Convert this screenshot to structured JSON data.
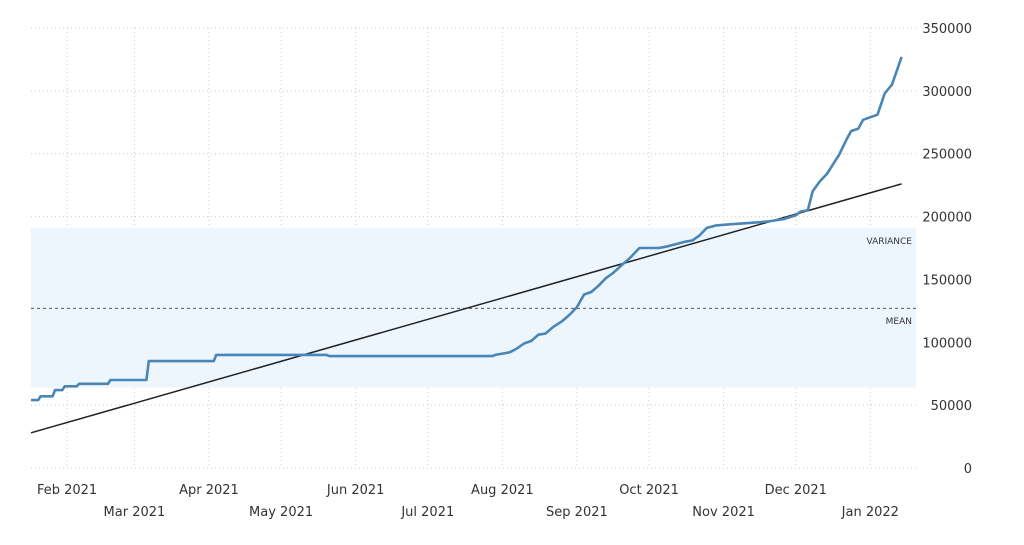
{
  "chart_data": {
    "type": "line",
    "y_axis": {
      "side": "right",
      "ylim": [
        0,
        350000
      ],
      "ticks": [
        0,
        50000,
        100000,
        150000,
        200000,
        250000,
        300000,
        350000
      ],
      "tick_labels": [
        "0",
        "50000",
        "100000",
        "150000",
        "200000",
        "250000",
        "300000",
        "350000"
      ]
    },
    "x_axis": {
      "xlim": [
        "2021-01-17",
        "2022-01-20"
      ],
      "ticks": [
        "2021-02-01",
        "2021-03-01",
        "2021-04-01",
        "2021-05-01",
        "2021-06-01",
        "2021-07-01",
        "2021-08-01",
        "2021-09-01",
        "2021-10-01",
        "2021-11-01",
        "2021-12-01",
        "2022-01-01"
      ],
      "tick_labels": [
        "Feb 2021",
        "Mar 2021",
        "Apr 2021",
        "May 2021",
        "Jun 2021",
        "Jul 2021",
        "Aug 2021",
        "Sep 2021",
        "Oct 2021",
        "Nov 2021",
        "Dec 2021",
        "Jan 2022"
      ],
      "label_rows": [
        0,
        1,
        0,
        1,
        0,
        1,
        0,
        1,
        0,
        1,
        0,
        1
      ]
    },
    "grid": "dotted",
    "series": [
      {
        "color": "#4a86b5",
        "points": [
          [
            "2021-01-17",
            54000
          ],
          [
            "2021-01-20",
            54000
          ],
          [
            "2021-01-21",
            57000
          ],
          [
            "2021-01-26",
            57000
          ],
          [
            "2021-01-27",
            62000
          ],
          [
            "2021-01-30",
            62000
          ],
          [
            "2021-01-31",
            65000
          ],
          [
            "2021-02-05",
            65000
          ],
          [
            "2021-02-06",
            67000
          ],
          [
            "2021-02-18",
            67000
          ],
          [
            "2021-02-19",
            70000
          ],
          [
            "2021-03-06",
            70000
          ],
          [
            "2021-03-07",
            85000
          ],
          [
            "2021-04-03",
            85000
          ],
          [
            "2021-04-04",
            90000
          ],
          [
            "2021-05-20",
            90000
          ],
          [
            "2021-05-21",
            89000
          ],
          [
            "2021-07-28",
            89000
          ],
          [
            "2021-07-29",
            90000
          ],
          [
            "2021-08-01",
            91000
          ],
          [
            "2021-08-04",
            92000
          ],
          [
            "2021-08-07",
            95000
          ],
          [
            "2021-08-10",
            99000
          ],
          [
            "2021-08-13",
            101000
          ],
          [
            "2021-08-16",
            106000
          ],
          [
            "2021-08-19",
            107000
          ],
          [
            "2021-08-22",
            112000
          ],
          [
            "2021-08-26",
            117000
          ],
          [
            "2021-08-29",
            122000
          ],
          [
            "2021-09-01",
            128000
          ],
          [
            "2021-09-04",
            138000
          ],
          [
            "2021-09-07",
            140000
          ],
          [
            "2021-09-10",
            145000
          ],
          [
            "2021-09-13",
            151000
          ],
          [
            "2021-09-16",
            155000
          ],
          [
            "2021-09-20",
            162000
          ],
          [
            "2021-09-23",
            167000
          ],
          [
            "2021-09-27",
            175000
          ],
          [
            "2021-10-05",
            175000
          ],
          [
            "2021-10-08",
            176000
          ],
          [
            "2021-10-12",
            178000
          ],
          [
            "2021-10-16",
            180000
          ],
          [
            "2021-10-19",
            181000
          ],
          [
            "2021-10-22",
            185000
          ],
          [
            "2021-10-25",
            191000
          ],
          [
            "2021-10-29",
            193000
          ],
          [
            "2021-11-05",
            194000
          ],
          [
            "2021-11-12",
            195000
          ],
          [
            "2021-11-19",
            196000
          ],
          [
            "2021-11-26",
            198000
          ],
          [
            "2021-12-01",
            201000
          ],
          [
            "2021-12-03",
            204000
          ],
          [
            "2021-12-06",
            205000
          ],
          [
            "2021-12-08",
            220000
          ],
          [
            "2021-12-11",
            228000
          ],
          [
            "2021-12-14",
            234000
          ],
          [
            "2021-12-17",
            243000
          ],
          [
            "2021-12-19",
            249000
          ],
          [
            "2021-12-22",
            261000
          ],
          [
            "2021-12-24",
            268000
          ],
          [
            "2021-12-27",
            270000
          ],
          [
            "2021-12-29",
            277000
          ],
          [
            "2022-01-04",
            281000
          ],
          [
            "2022-01-07",
            298000
          ],
          [
            "2022-01-10",
            305000
          ],
          [
            "2022-01-14",
            327000
          ]
        ]
      }
    ],
    "trendline": {
      "color": "#222222",
      "points": [
        [
          "2021-01-17",
          28000
        ],
        [
          "2022-01-14",
          226000
        ]
      ]
    },
    "mean_line": {
      "label": "MEAN",
      "value": 127000
    },
    "variance_band": {
      "label": "VARIANCE",
      "range": [
        64000,
        191000
      ],
      "color": "#eef6fd"
    }
  }
}
